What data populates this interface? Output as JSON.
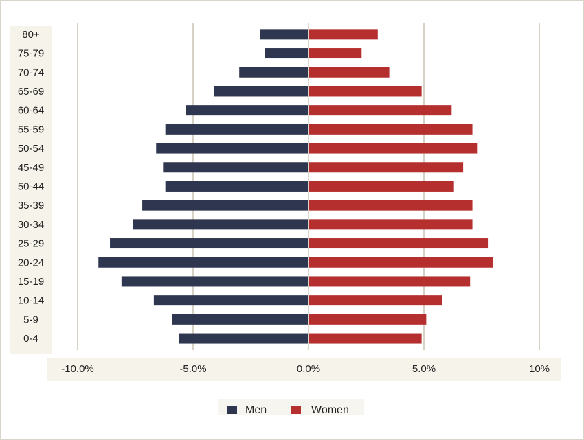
{
  "chart_data": {
    "type": "bar",
    "orientation": "horizontal",
    "categories": [
      "80+",
      "75-79",
      "70-74",
      "65-69",
      "60-64",
      "55-59",
      "50-54",
      "45-49",
      "50-44",
      "35-39",
      "30-34",
      "25-29",
      "20-24",
      "15-19",
      "10-14",
      "5-9",
      "0-4"
    ],
    "series": [
      {
        "name": "Men",
        "color": "#2f3650",
        "values": [
          -2.1,
          -1.9,
          -3.0,
          -4.1,
          -5.3,
          -6.2,
          -6.6,
          -6.3,
          -6.2,
          -7.2,
          -7.6,
          -8.6,
          -9.1,
          -8.1,
          -6.7,
          -5.9,
          -5.6
        ]
      },
      {
        "name": "Women",
        "color": "#b52f2f",
        "values": [
          3.0,
          2.3,
          3.5,
          4.9,
          6.2,
          7.1,
          7.3,
          6.7,
          6.3,
          7.1,
          7.1,
          7.8,
          8.0,
          7.0,
          5.8,
          5.1,
          4.9
        ]
      }
    ],
    "xlim": [
      -10,
      10
    ],
    "x_ticks": [
      {
        "value": -10,
        "label": "-10.0%"
      },
      {
        "value": -5,
        "label": "-5.0%"
      },
      {
        "value": 0,
        "label": "0.0%"
      },
      {
        "value": 5,
        "label": "5.0%"
      },
      {
        "value": 10,
        "label": "10%"
      }
    ],
    "grid": true,
    "legend_position": "bottom",
    "title": "",
    "xlabel": "",
    "ylabel": ""
  },
  "colors": {
    "gridline": "#d8d1c6",
    "label_band": "#f6f3ea"
  }
}
